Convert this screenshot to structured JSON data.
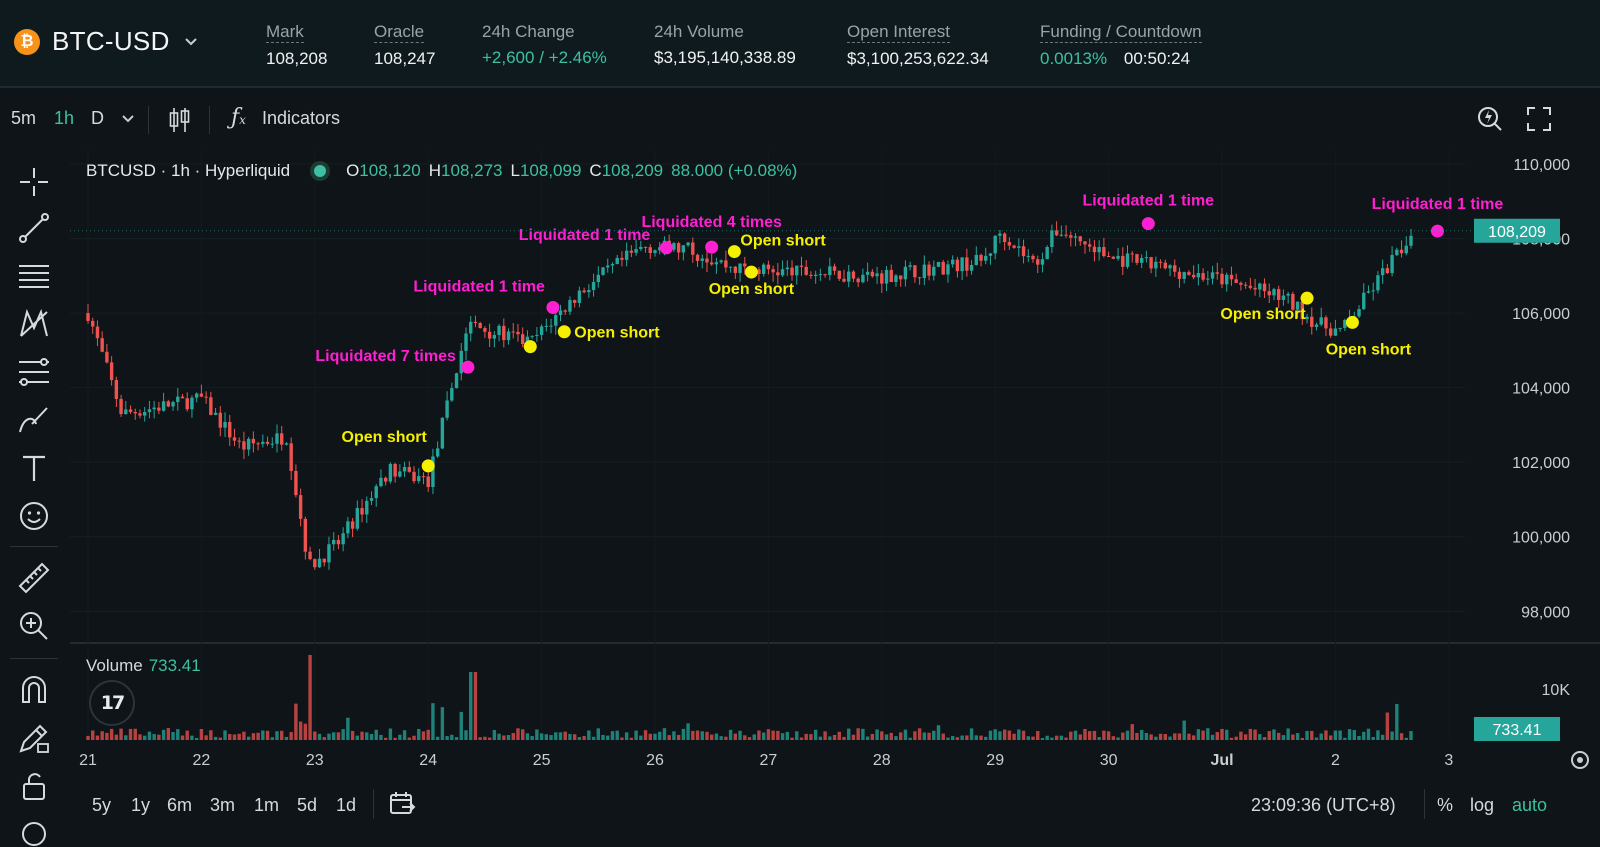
{
  "header": {
    "symbol": "BTC-USD",
    "stats": [
      {
        "label": "Mark",
        "value": "108,208",
        "underline": true
      },
      {
        "label": "Oracle",
        "value": "108,247",
        "underline": true
      },
      {
        "label": "24h Change",
        "value": "+2,600 / +2.46%",
        "underline": false
      },
      {
        "label": "24h Volume",
        "value": "$3,195,140,338.89",
        "underline": false
      },
      {
        "label": "Open Interest",
        "value": "$3,100,253,622.34",
        "underline": true
      },
      {
        "label": "Funding / Countdown",
        "value": "0.0013%",
        "value2": "00:50:24",
        "underline": true
      }
    ]
  },
  "toolbar": {
    "intervals": [
      "5m",
      "1h",
      "D"
    ],
    "active_interval": "1h",
    "indicators_label": "Indicators"
  },
  "legend": {
    "title": "BTCUSD · 1h · Hyperliquid",
    "o_key": "O",
    "o": "108,120",
    "h_key": "H",
    "h": "108,273",
    "l_key": "L",
    "l": "108,099",
    "c_key": "C",
    "c": "108,209",
    "change": "88.000 (+0.08%)"
  },
  "volume_legend": {
    "label": "Volume",
    "value": "733.41"
  },
  "bottom": {
    "ranges": [
      "5y",
      "1y",
      "6m",
      "3m",
      "1m",
      "5d",
      "1d"
    ],
    "time": "23:09:36 (UTC+8)",
    "percent": "%",
    "log": "log",
    "auto": "auto"
  },
  "colors": {
    "up": "#26a69a",
    "down": "#ef5350",
    "liquidation": "#ff1fd2",
    "short": "#f5f000",
    "background": "#0e1417"
  },
  "chart_data": {
    "type": "candlestick",
    "title": "BTCUSD · 1h · Hyperliquid",
    "x_ticks": [
      "21",
      "22",
      "23",
      "24",
      "25",
      "26",
      "27",
      "28",
      "29",
      "30",
      "Jul",
      "2",
      "3"
    ],
    "y_ticks": [
      "98,000",
      "100,000",
      "102,000",
      "104,000",
      "106,000",
      "108,000",
      "110,000"
    ],
    "ylim": [
      96800,
      110000
    ],
    "last_price": "108,209",
    "volume_ticks": [
      "10K"
    ],
    "volume_last": "733.41",
    "price_path": [
      {
        "t": 0,
        "p": 106000
      },
      {
        "t": 0.3,
        "p": 103300
      },
      {
        "t": 1.0,
        "p": 103700
      },
      {
        "t": 1.35,
        "p": 102400
      },
      {
        "t": 1.75,
        "p": 102700
      },
      {
        "t": 1.95,
        "p": 99200
      },
      {
        "t": 2.2,
        "p": 99800
      },
      {
        "t": 2.65,
        "p": 101800
      },
      {
        "t": 3.0,
        "p": 101500
      },
      {
        "t": 3.35,
        "p": 105700
      },
      {
        "t": 3.9,
        "p": 105200
      },
      {
        "t": 4.35,
        "p": 106600
      },
      {
        "t": 4.9,
        "p": 107800
      },
      {
        "t": 5.3,
        "p": 107700
      },
      {
        "t": 5.7,
        "p": 107200
      },
      {
        "t": 6.2,
        "p": 107100
      },
      {
        "t": 7.0,
        "p": 107000
      },
      {
        "t": 7.9,
        "p": 107400
      },
      {
        "t": 8.05,
        "p": 108200
      },
      {
        "t": 8.35,
        "p": 107300
      },
      {
        "t": 8.55,
        "p": 108250
      },
      {
        "t": 9.0,
        "p": 107500
      },
      {
        "t": 10.0,
        "p": 106900
      },
      {
        "t": 10.55,
        "p": 106400
      },
      {
        "t": 10.85,
        "p": 105700
      },
      {
        "t": 11.05,
        "p": 105500
      },
      {
        "t": 11.45,
        "p": 107200
      },
      {
        "t": 11.7,
        "p": 108209
      }
    ],
    "annotations": [
      {
        "kind": "liquidation",
        "text": "Liquidated 7 times",
        "t": 3.35,
        "p": 104550
      },
      {
        "kind": "liquidation",
        "text": "Liquidated 1 time",
        "t": 4.1,
        "p": 106150
      },
      {
        "kind": "liquidation",
        "text": "Liquidated 1 time",
        "t": 5.1,
        "p": 107750
      },
      {
        "kind": "liquidation",
        "text": "Liquidated 4 times",
        "t": 5.5,
        "p": 107770
      },
      {
        "kind": "liquidation",
        "text": "Liquidated 1 time",
        "t": 9.35,
        "p": 108400
      },
      {
        "kind": "liquidation",
        "text": "Liquidated 1 time",
        "t": 11.9,
        "p": 108200
      },
      {
        "kind": "short",
        "text": "Open short",
        "t": 3.0,
        "p": 101900
      },
      {
        "kind": "short",
        "text": "Open short",
        "t": 3.9,
        "p": 105100
      },
      {
        "kind": "short",
        "text": "Open short",
        "t": 4.2,
        "p": 105500
      },
      {
        "kind": "short",
        "text": "Open short",
        "t": 5.7,
        "p": 107650
      },
      {
        "kind": "short",
        "text": "Open short",
        "t": 5.85,
        "p": 107100
      },
      {
        "kind": "short",
        "text": "Open short",
        "t": 10.75,
        "p": 106400
      },
      {
        "kind": "short",
        "text": "Open short",
        "t": 11.15,
        "p": 105750
      }
    ]
  }
}
